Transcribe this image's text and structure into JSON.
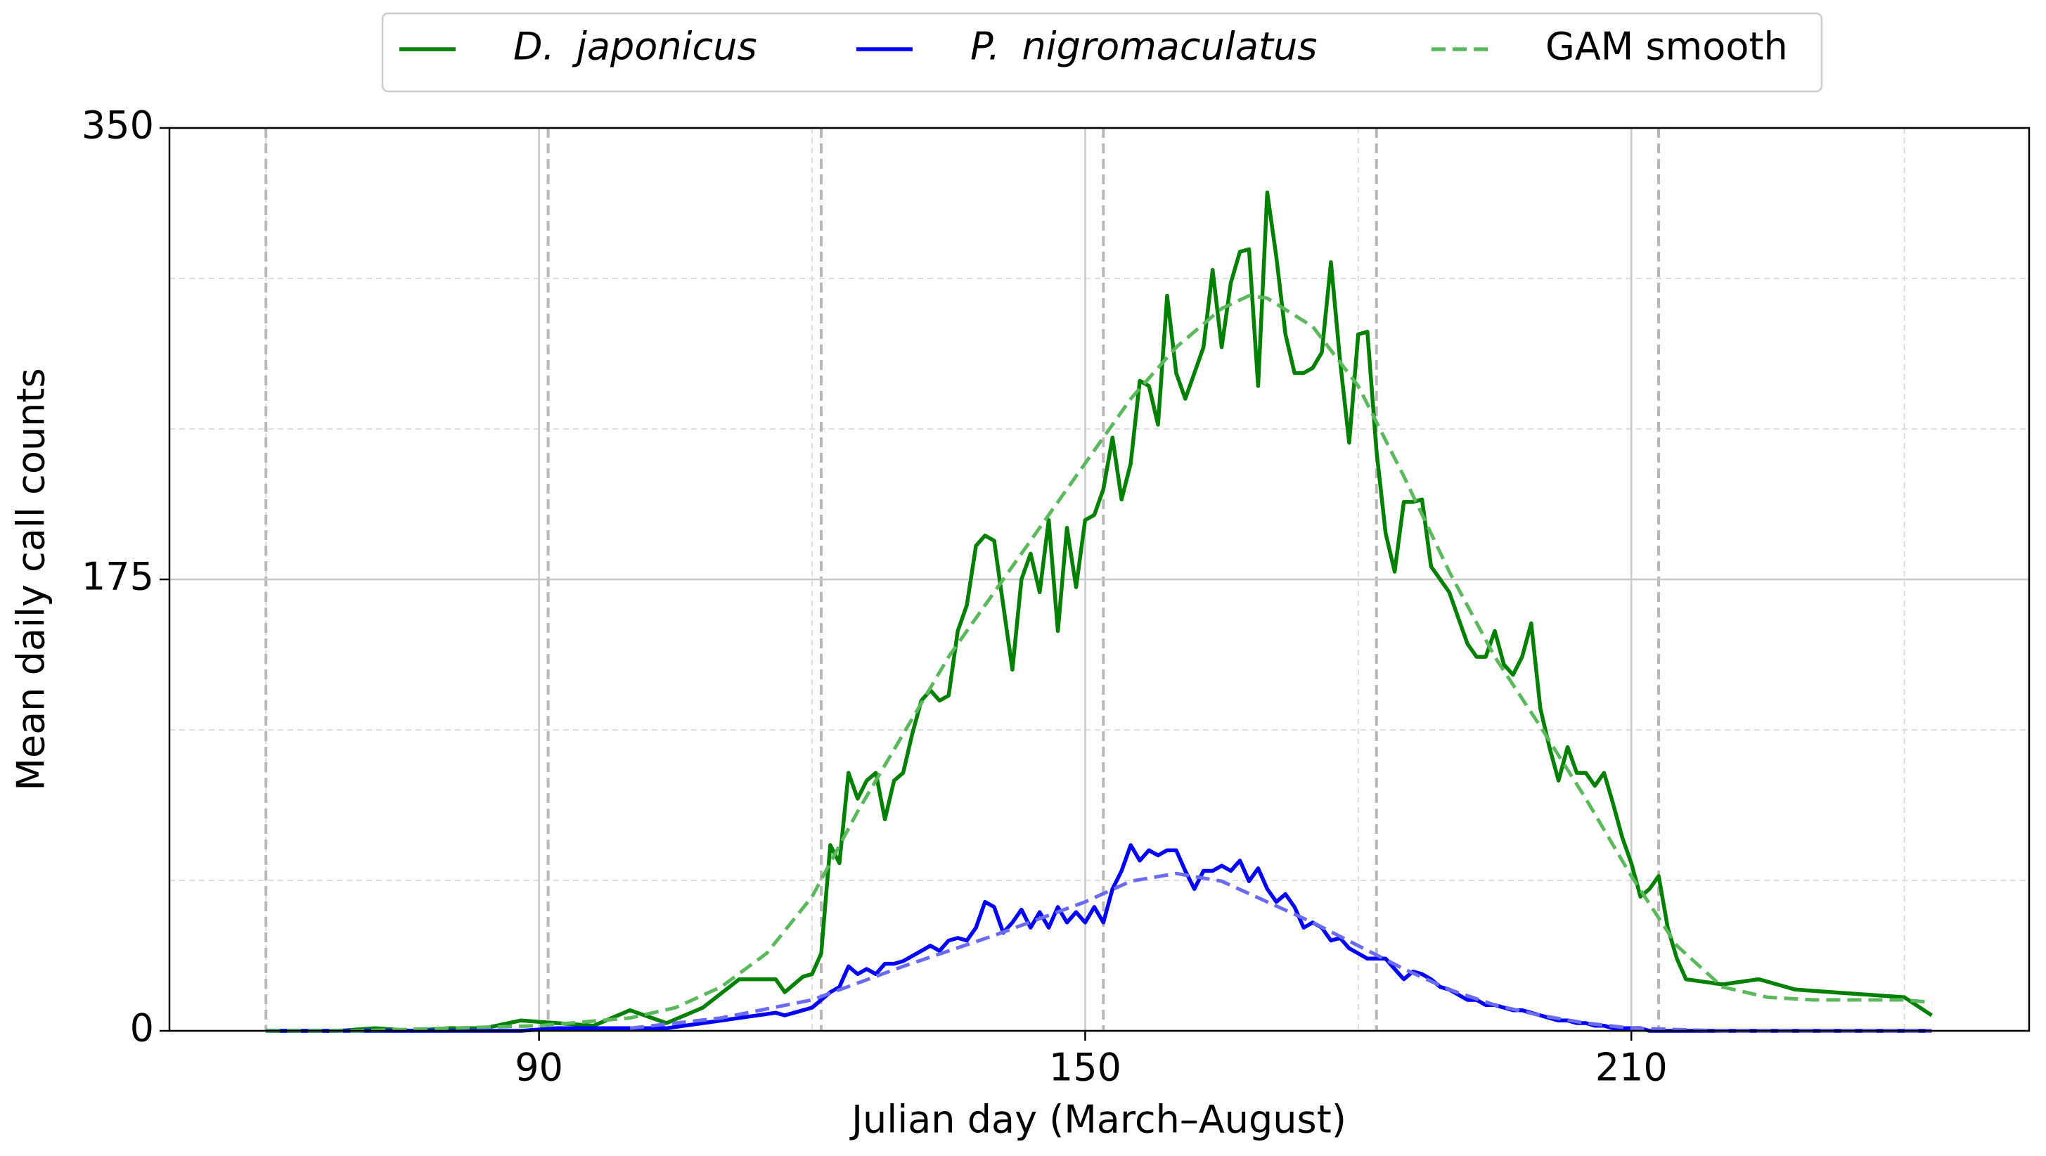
{
  "chart_data": {
    "type": "line",
    "xlabel": "Julian day (March–August)",
    "ylabel": "Mean daily call counts",
    "xlim": [
      49.4,
      253.7
    ],
    "ylim": [
      0,
      350
    ],
    "xticks": [
      90,
      150,
      210
    ],
    "yticks": [
      0,
      175,
      350
    ],
    "xminor": [
      60,
      120,
      180,
      240
    ],
    "yminor": [
      58.3,
      116.7,
      233.3,
      291.7
    ],
    "vlines": [
      60,
      91,
      121,
      152,
      182,
      213
    ],
    "grid": true,
    "legend": "top",
    "x": [
      60,
      64,
      68,
      72,
      76,
      80,
      84,
      88,
      92,
      96,
      100,
      104,
      108,
      112,
      116,
      117,
      118,
      119,
      120,
      121,
      122,
      123,
      124,
      125,
      126,
      127,
      128,
      129,
      130,
      131,
      132,
      133,
      134,
      135,
      136,
      137,
      138,
      139,
      140,
      141,
      142,
      143,
      144,
      145,
      146,
      147,
      148,
      149,
      150,
      151,
      152,
      153,
      154,
      155,
      156,
      157,
      158,
      159,
      160,
      161,
      162,
      163,
      164,
      165,
      166,
      167,
      168,
      169,
      170,
      171,
      172,
      173,
      174,
      175,
      176,
      177,
      178,
      179,
      180,
      181,
      182,
      183,
      184,
      185,
      186,
      187,
      188,
      189,
      190,
      191,
      192,
      193,
      194,
      195,
      196,
      197,
      198,
      199,
      200,
      201,
      202,
      203,
      204,
      205,
      206,
      207,
      208,
      209,
      210,
      211,
      212,
      213,
      214,
      215,
      216,
      220,
      224,
      228,
      232,
      236,
      240,
      243
    ],
    "series": [
      {
        "name": "D. japonicus",
        "italic": true,
        "color": "#008000",
        "dash": false,
        "values": [
          0,
          0,
          0,
          1,
          0,
          1,
          1,
          4,
          3,
          2,
          8,
          3,
          9,
          20,
          20,
          15,
          18,
          21,
          22,
          30,
          72,
          65,
          100,
          90,
          97,
          100,
          82,
          97,
          100,
          115,
          128,
          132,
          128,
          130,
          155,
          165,
          188,
          192,
          190,
          165,
          140,
          175,
          185,
          170,
          198,
          155,
          195,
          172,
          198,
          200,
          210,
          230,
          206,
          220,
          252,
          250,
          235,
          285,
          255,
          245,
          255,
          265,
          295,
          265,
          290,
          302,
          303,
          250,
          325,
          300,
          270,
          255,
          255,
          257,
          263,
          298,
          260,
          228,
          270,
          271,
          225,
          193,
          178,
          205,
          205,
          206,
          180,
          175,
          170,
          160,
          150,
          145,
          145,
          155,
          142,
          138,
          145,
          158,
          125,
          110,
          97,
          110,
          100,
          100,
          95,
          100,
          88,
          75,
          65,
          52,
          55,
          60,
          40,
          28,
          20,
          18,
          20,
          16,
          15,
          14,
          13,
          6
        ]
      },
      {
        "name": "P. nigromaculatus",
        "italic": true,
        "color": "#0000ff",
        "dash": false,
        "values": [
          0,
          0,
          0,
          0,
          0,
          0,
          0,
          0,
          1,
          1,
          1,
          1,
          3,
          5,
          7,
          6,
          7,
          8,
          9,
          12,
          15,
          17,
          25,
          22,
          24,
          22,
          26,
          26,
          27,
          29,
          31,
          33,
          31,
          35,
          36,
          35,
          40,
          50,
          48,
          38,
          42,
          47,
          40,
          46,
          40,
          48,
          42,
          46,
          42,
          48,
          42,
          55,
          62,
          72,
          66,
          70,
          68,
          70,
          70,
          62,
          55,
          62,
          62,
          64,
          62,
          66,
          58,
          63,
          55,
          50,
          53,
          48,
          40,
          42,
          40,
          35,
          36,
          32,
          30,
          28,
          28,
          28,
          24,
          20,
          23,
          22,
          20,
          17,
          16,
          14,
          12,
          12,
          10,
          10,
          9,
          8,
          8,
          7,
          6,
          5,
          4,
          4,
          3,
          3,
          2,
          2,
          1,
          1,
          1,
          1,
          0,
          0,
          0,
          0,
          0,
          0,
          0,
          0,
          0,
          0,
          0,
          0
        ]
      },
      {
        "name": "GAM smooth",
        "italic": false,
        "color": "#5cb85c",
        "dash": true,
        "x": [
          60,
          70,
          80,
          90,
          100,
          105,
          110,
          115,
          120,
          125,
          130,
          135,
          140,
          145,
          150,
          155,
          160,
          165,
          168,
          170,
          175,
          180,
          185,
          190,
          195,
          200,
          205,
          210,
          215,
          220,
          225,
          230,
          235,
          240,
          243
        ],
        "values": [
          0,
          0,
          1,
          2,
          5,
          9,
          17,
          30,
          52,
          85,
          115,
          145,
          170,
          195,
          220,
          245,
          265,
          280,
          285,
          284,
          273,
          250,
          215,
          178,
          145,
          118,
          90,
          60,
          33,
          17,
          13,
          12,
          12,
          12,
          11
        ]
      },
      {
        "color": "#6b6bf0",
        "dash": true,
        "x": [
          100,
          110,
          120,
          130,
          140,
          150,
          155,
          160,
          165,
          170,
          175,
          180,
          185,
          190,
          195,
          200,
          205,
          210,
          220,
          243
        ],
        "values": [
          1,
          5,
          12,
          25,
          37,
          50,
          58,
          61,
          58,
          50,
          42,
          33,
          24,
          16,
          10,
          6,
          3,
          1,
          0,
          0
        ]
      }
    ]
  }
}
